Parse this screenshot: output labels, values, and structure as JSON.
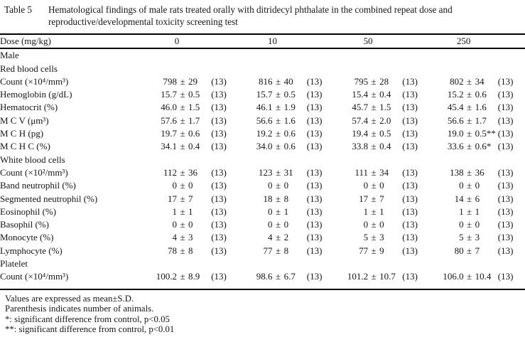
{
  "title": {
    "label": "Table 5",
    "text": "Hematological findings of male rats treated orally with ditridecyl phthalate in the combined repeat dose and reproductive/developmental toxicity screening test"
  },
  "header": {
    "dose_label": "Dose (mg/kg)",
    "doses": [
      "0",
      "10",
      "50",
      "250"
    ]
  },
  "group_label": "Male",
  "pm_symbol": "±",
  "sections": [
    {
      "label": "Red blood cells",
      "rows": [
        {
          "label": "Count (×10⁴/mm³)",
          "values": [
            {
              "mean": "798",
              "sd": "29",
              "n": "(13)"
            },
            {
              "mean": "816",
              "sd": "40",
              "n": "(13)"
            },
            {
              "mean": "795",
              "sd": "28",
              "n": "(13)"
            },
            {
              "mean": "802",
              "sd": "34",
              "n": "(13)"
            }
          ]
        },
        {
          "label": "Hemoglobin (g/dL)",
          "values": [
            {
              "mean": "15.7",
              "sd": "0.5",
              "n": "(13)"
            },
            {
              "mean": "15.7",
              "sd": "0.5",
              "n": "(13)"
            },
            {
              "mean": "15.4",
              "sd": "0.4",
              "n": "(13)"
            },
            {
              "mean": "15.2",
              "sd": "0.6",
              "n": "(13)"
            }
          ]
        },
        {
          "label": "Hematocrit (%)",
          "values": [
            {
              "mean": "46.0",
              "sd": "1.5",
              "n": "(13)"
            },
            {
              "mean": "46.1",
              "sd": "1.9",
              "n": "(13)"
            },
            {
              "mean": "45.7",
              "sd": "1.5",
              "n": "(13)"
            },
            {
              "mean": "45.4",
              "sd": "1.6",
              "n": "(13)"
            }
          ]
        },
        {
          "label": "M C V (μm³)",
          "values": [
            {
              "mean": "57.6",
              "sd": "1.7",
              "n": "(13)"
            },
            {
              "mean": "56.6",
              "sd": "1.6",
              "n": "(13)"
            },
            {
              "mean": "57.4",
              "sd": "2.0",
              "n": "(13)"
            },
            {
              "mean": "56.6",
              "sd": "1.7",
              "n": "(13)"
            }
          ]
        },
        {
          "label": "M C H (pg)",
          "values": [
            {
              "mean": "19.7",
              "sd": "0.6",
              "n": "(13)"
            },
            {
              "mean": "19.2",
              "sd": "0.6",
              "n": "(13)"
            },
            {
              "mean": "19.4",
              "sd": "0.5",
              "n": "(13)"
            },
            {
              "mean": "19.0",
              "sd": "0.5**",
              "n": "(13)"
            }
          ]
        },
        {
          "label": "M C H C (%)",
          "values": [
            {
              "mean": "34.1",
              "sd": "0.4",
              "n": "(13)"
            },
            {
              "mean": "34.0",
              "sd": "0.6",
              "n": "(13)"
            },
            {
              "mean": "33.8",
              "sd": "0.4",
              "n": "(13)"
            },
            {
              "mean": "33.6",
              "sd": "0.6*",
              "n": "(13)"
            }
          ]
        }
      ]
    },
    {
      "label": "White blood cells",
      "rows": [
        {
          "label": "Count (×10²/mm³)",
          "values": [
            {
              "mean": "112",
              "sd": "36",
              "n": "(13)"
            },
            {
              "mean": "123",
              "sd": "31",
              "n": "(13)"
            },
            {
              "mean": "111",
              "sd": "34",
              "n": "(13)"
            },
            {
              "mean": "138",
              "sd": "36",
              "n": "(13)"
            }
          ]
        },
        {
          "label": "Band neutrophil (%)",
          "values": [
            {
              "mean": "0",
              "sd": "0",
              "n": "(13)"
            },
            {
              "mean": "0",
              "sd": "0",
              "n": "(13)"
            },
            {
              "mean": "0",
              "sd": "0",
              "n": "(13)"
            },
            {
              "mean": "0",
              "sd": "0",
              "n": "(13)"
            }
          ]
        },
        {
          "label": "Segmented neutrophil (%)",
          "values": [
            {
              "mean": "17",
              "sd": "7",
              "n": "(13)"
            },
            {
              "mean": "18",
              "sd": "8",
              "n": "(13)"
            },
            {
              "mean": "17",
              "sd": "7",
              "n": "(13)"
            },
            {
              "mean": "14",
              "sd": "6",
              "n": "(13)"
            }
          ]
        },
        {
          "label": "Eosinophil (%)",
          "values": [
            {
              "mean": "1",
              "sd": "1",
              "n": "(13)"
            },
            {
              "mean": "0",
              "sd": "1",
              "n": "(13)"
            },
            {
              "mean": "1",
              "sd": "1",
              "n": "(13)"
            },
            {
              "mean": "1",
              "sd": "1",
              "n": "(13)"
            }
          ]
        },
        {
          "label": "Basophil (%)",
          "values": [
            {
              "mean": "0",
              "sd": "0",
              "n": "(13)"
            },
            {
              "mean": "0",
              "sd": "0",
              "n": "(13)"
            },
            {
              "mean": "0",
              "sd": "0",
              "n": "(13)"
            },
            {
              "mean": "0",
              "sd": "0",
              "n": "(13)"
            }
          ]
        },
        {
          "label": "Monocyte (%)",
          "values": [
            {
              "mean": "4",
              "sd": "3",
              "n": "(13)"
            },
            {
              "mean": "4",
              "sd": "2",
              "n": "(13)"
            },
            {
              "mean": "5",
              "sd": "3",
              "n": "(13)"
            },
            {
              "mean": "5",
              "sd": "3",
              "n": "(13)"
            }
          ]
        },
        {
          "label": "Lymphocyte (%)",
          "values": [
            {
              "mean": "78",
              "sd": "8",
              "n": "(13)"
            },
            {
              "mean": "77",
              "sd": "8",
              "n": "(13)"
            },
            {
              "mean": "77",
              "sd": "9",
              "n": "(13)"
            },
            {
              "mean": "80",
              "sd": "7",
              "n": "(13)"
            }
          ]
        }
      ]
    },
    {
      "label": "Platelet",
      "rows": [
        {
          "label": "Count (×10⁴/mm³)",
          "values": [
            {
              "mean": "100.2",
              "sd": "8.9",
              "n": "(13)"
            },
            {
              "mean": "98.6",
              "sd": "6.7",
              "n": "(13)"
            },
            {
              "mean": "101.2",
              "sd": "10.7",
              "n": "(13)"
            },
            {
              "mean": "106.0",
              "sd": "10.4",
              "n": "(13)"
            }
          ]
        }
      ]
    }
  ],
  "footnotes": [
    "Values are expressed as mean±S.D.",
    "Parenthesis indicates number of animals.",
    "*: significant difference from control, p<0.05",
    "**: significant difference from control, p<0.01"
  ]
}
